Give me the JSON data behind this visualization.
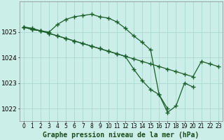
{
  "title": "Graphe pression niveau de la mer (hPa)",
  "title_fontsize": 7,
  "bg_color": "#cceee8",
  "grid_color": "#aad8d0",
  "line_color": "#1a5e2a",
  "marker": "+",
  "markersize": 4,
  "linewidth": 0.9,
  "ylim": [
    1021.5,
    1026.2
  ],
  "xlim": [
    -0.5,
    23.5
  ],
  "yticks": [
    1022,
    1023,
    1024,
    1025
  ],
  "xticks": [
    0,
    1,
    2,
    3,
    4,
    5,
    6,
    7,
    8,
    9,
    10,
    11,
    12,
    13,
    14,
    15,
    16,
    17,
    18,
    19,
    20,
    21,
    22,
    23
  ],
  "xtick_fontsize": 5.5,
  "ytick_fontsize": 6.5,
  "series": [
    {
      "x": [
        0,
        1,
        2,
        3,
        4,
        5,
        6,
        7,
        8,
        9,
        10,
        11,
        12,
        13,
        14,
        15,
        16,
        17
      ],
      "y": [
        1025.2,
        1025.15,
        1025.05,
        1025.0,
        1025.3,
        1025.5,
        1025.6,
        1025.65,
        1025.7,
        1025.6,
        1025.55,
        1025.4,
        1025.15,
        1024.85,
        1024.6,
        1024.3,
        1022.55,
        1022.0
      ]
    },
    {
      "x": [
        0,
        1,
        2,
        3,
        4,
        5,
        6,
        7,
        8,
        9,
        10,
        11,
        12,
        13,
        14,
        15,
        16,
        17,
        18,
        19,
        20,
        21,
        22,
        23
      ],
      "y": [
        1025.2,
        1025.1,
        1025.05,
        1024.95,
        1024.85,
        1024.75,
        1024.65,
        1024.55,
        1024.45,
        1024.35,
        1024.25,
        1024.15,
        1024.05,
        1023.95,
        1023.85,
        1023.75,
        1023.65,
        1023.55,
        1023.45,
        1023.35,
        1023.25,
        1023.85,
        1023.75,
        1023.65
      ]
    },
    {
      "x": [
        0,
        1,
        2,
        3,
        4,
        5,
        6,
        7,
        8,
        9,
        10,
        11,
        12,
        13,
        14,
        15,
        16,
        17,
        18,
        19,
        20,
        21,
        22,
        23
      ],
      "y": [
        1025.2,
        1025.1,
        1025.05,
        1024.95,
        1024.85,
        1024.75,
        1024.65,
        1024.55,
        1024.45,
        1024.35,
        1024.25,
        1024.15,
        1024.05,
        1023.55,
        1023.1,
        1022.75,
        1022.55,
        1021.85,
        1022.1,
        1023.0,
        1022.85,
        null,
        null,
        null
      ]
    }
  ]
}
